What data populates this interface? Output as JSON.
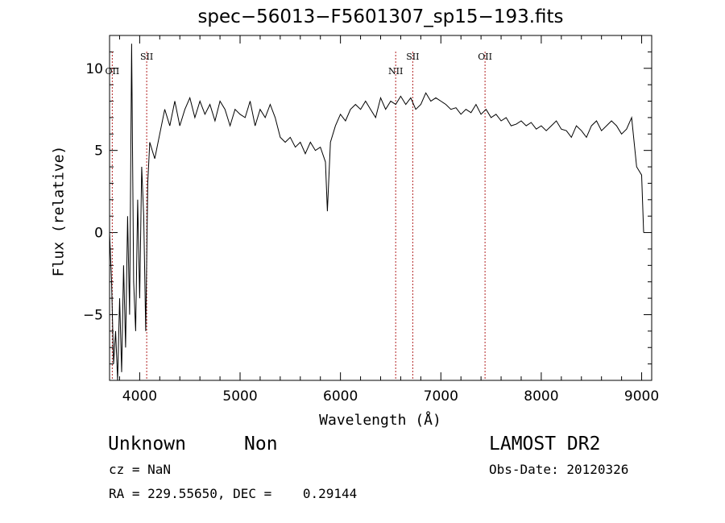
{
  "chart_data": {
    "type": "line",
    "title": "spec−56013−F5601307_sp15−193.fits",
    "xlabel": "Wavelength (Å)",
    "ylabel": "Flux (relative)",
    "xlim": [
      3700,
      9100
    ],
    "ylim": [
      -9,
      12
    ],
    "x_ticks": [
      4000,
      5000,
      6000,
      7000,
      8000,
      9000
    ],
    "y_ticks": [
      -5,
      0,
      5,
      10
    ],
    "grid": false,
    "series": [
      {
        "color": "#000000",
        "x": [
          3700,
          3720,
          3740,
          3760,
          3780,
          3800,
          3820,
          3840,
          3860,
          3880,
          3900,
          3920,
          3940,
          3960,
          3980,
          4000,
          4020,
          4040,
          4060,
          4080,
          4100,
          4150,
          4200,
          4250,
          4300,
          4350,
          4400,
          4450,
          4500,
          4550,
          4600,
          4650,
          4700,
          4750,
          4800,
          4850,
          4900,
          4950,
          5000,
          5050,
          5100,
          5150,
          5200,
          5250,
          5300,
          5350,
          5400,
          5450,
          5500,
          5550,
          5600,
          5650,
          5700,
          5750,
          5800,
          5850,
          5870,
          5900,
          5950,
          6000,
          6050,
          6100,
          6150,
          6200,
          6250,
          6300,
          6350,
          6400,
          6450,
          6500,
          6550,
          6600,
          6650,
          6700,
          6750,
          6800,
          6850,
          6900,
          6950,
          7000,
          7050,
          7100,
          7150,
          7200,
          7250,
          7300,
          7350,
          7400,
          7450,
          7500,
          7550,
          7600,
          7650,
          7700,
          7750,
          7800,
          7850,
          7900,
          7950,
          8000,
          8050,
          8100,
          8150,
          8200,
          8250,
          8300,
          8350,
          8400,
          8450,
          8500,
          8550,
          8600,
          8650,
          8700,
          8750,
          8800,
          8850,
          8900,
          8950,
          8970,
          9000,
          9020
        ],
        "y": [
          0,
          -3,
          -8,
          -6,
          -9,
          -4,
          -8.5,
          -2,
          -7,
          1,
          -5,
          11.5,
          -3,
          -6,
          2,
          -4,
          4,
          1,
          -6,
          3,
          5.5,
          4.5,
          6,
          7.5,
          6.5,
          8,
          6.5,
          7.5,
          8.2,
          7,
          8,
          7.2,
          7.8,
          6.8,
          8,
          7.5,
          6.5,
          7.5,
          7.2,
          7,
          8,
          6.5,
          7.5,
          7,
          7.8,
          7,
          5.8,
          5.5,
          5.8,
          5.2,
          5.5,
          4.8,
          5.5,
          5,
          5.2,
          4.3,
          1.3,
          5.5,
          6.5,
          7.2,
          6.8,
          7.5,
          7.8,
          7.5,
          8,
          7.5,
          7,
          8.2,
          7.5,
          8,
          7.8,
          8.3,
          7.8,
          8.2,
          7.5,
          7.8,
          8.5,
          8,
          8.2,
          8,
          7.8,
          7.5,
          7.6,
          7.2,
          7.5,
          7.3,
          7.8,
          7.2,
          7.5,
          7,
          7.2,
          6.8,
          7,
          6.5,
          6.6,
          6.8,
          6.5,
          6.7,
          6.3,
          6.5,
          6.2,
          6.5,
          6.8,
          6.3,
          6.2,
          5.8,
          6.5,
          6.2,
          5.8,
          6.5,
          6.8,
          6.2,
          6.5,
          6.8,
          6.5,
          6,
          6.3,
          7,
          4,
          3.8,
          3.5,
          0
        ]
      }
    ],
    "lines": [
      {
        "label": "OII",
        "x": 3727
      },
      {
        "label": "SII",
        "x": 4070
      },
      {
        "label": "NII",
        "x": 6550
      },
      {
        "label": "SII",
        "x": 6720
      },
      {
        "label": "OII",
        "x": 7440
      }
    ]
  },
  "info": {
    "class_text": "Unknown",
    "subclass_text": "Non",
    "survey": "LAMOST DR2",
    "cz": "cz = NaN",
    "obs_date": "Obs-Date: 20120326",
    "coords": "RA = 229.55650, DEC =    0.29144"
  }
}
